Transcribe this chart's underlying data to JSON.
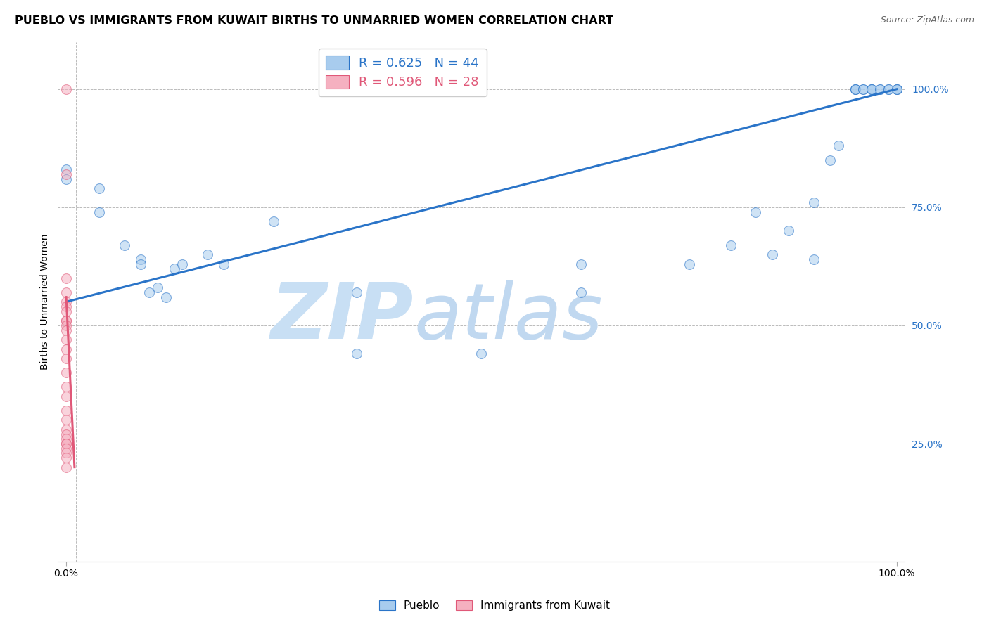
{
  "title": "PUEBLO VS IMMIGRANTS FROM KUWAIT BIRTHS TO UNMARRIED WOMEN CORRELATION CHART",
  "source": "Source: ZipAtlas.com",
  "ylabel": "Births to Unmarried Women",
  "watermark_zip": "ZIP",
  "watermark_atlas": "atlas",
  "legend_blue_r": "R = 0.625",
  "legend_blue_n": "N = 44",
  "legend_pink_r": "R = 0.596",
  "legend_pink_n": "N = 28",
  "blue_scatter_x": [
    0.0,
    0.0,
    0.04,
    0.04,
    0.07,
    0.09,
    0.09,
    0.1,
    0.11,
    0.12,
    0.13,
    0.14,
    0.17,
    0.19,
    0.25,
    0.35,
    0.35,
    0.5,
    0.62,
    0.62,
    0.75,
    0.8,
    0.83,
    0.85,
    0.87,
    0.9,
    0.9,
    0.92,
    0.93,
    0.95,
    0.95,
    0.95,
    0.96,
    0.96,
    0.97,
    0.97,
    0.97,
    0.98,
    0.98,
    0.99,
    0.99,
    1.0,
    1.0,
    1.0
  ],
  "blue_scatter_y": [
    0.83,
    0.81,
    0.79,
    0.74,
    0.67,
    0.64,
    0.63,
    0.57,
    0.58,
    0.56,
    0.62,
    0.63,
    0.65,
    0.63,
    0.72,
    0.57,
    0.44,
    0.44,
    0.63,
    0.57,
    0.63,
    0.67,
    0.74,
    0.65,
    0.7,
    0.76,
    0.64,
    0.85,
    0.88,
    1.0,
    1.0,
    1.0,
    1.0,
    1.0,
    1.0,
    1.0,
    1.0,
    1.0,
    1.0,
    1.0,
    1.0,
    1.0,
    1.0,
    1.0
  ],
  "pink_scatter_x": [
    0.0,
    0.0,
    0.0,
    0.0,
    0.0,
    0.0,
    0.0,
    0.0,
    0.0,
    0.0,
    0.0,
    0.0,
    0.0,
    0.0,
    0.0,
    0.0,
    0.0,
    0.0,
    0.0,
    0.0,
    0.0,
    0.0,
    0.0,
    0.0,
    0.0,
    0.0,
    0.0,
    0.0
  ],
  "pink_scatter_y": [
    1.0,
    0.82,
    0.6,
    0.57,
    0.55,
    0.54,
    0.53,
    0.51,
    0.51,
    0.5,
    0.49,
    0.47,
    0.45,
    0.43,
    0.4,
    0.37,
    0.35,
    0.32,
    0.3,
    0.28,
    0.27,
    0.26,
    0.25,
    0.25,
    0.24,
    0.23,
    0.22,
    0.2
  ],
  "blue_line_x": [
    0.0,
    1.0
  ],
  "blue_line_y": [
    0.55,
    1.0
  ],
  "pink_line_x": [
    0.0,
    0.01
  ],
  "pink_line_y": [
    0.56,
    0.2
  ],
  "pink_vline_x": 0.012,
  "blue_color": "#a8ccee",
  "pink_color": "#f5b0c0",
  "blue_line_color": "#2a74c8",
  "pink_line_color": "#e05878",
  "grid_color": "#bbbbbb",
  "watermark_color_zip": "#c8dff4",
  "watermark_color_atlas": "#c0d8f0",
  "background_color": "#ffffff",
  "title_fontsize": 11.5,
  "source_fontsize": 9,
  "marker_size": 100,
  "marker_alpha": 0.55,
  "legend_fontsize": 13,
  "xlim": [
    -0.01,
    1.01
  ],
  "ylim": [
    0.0,
    1.1
  ]
}
